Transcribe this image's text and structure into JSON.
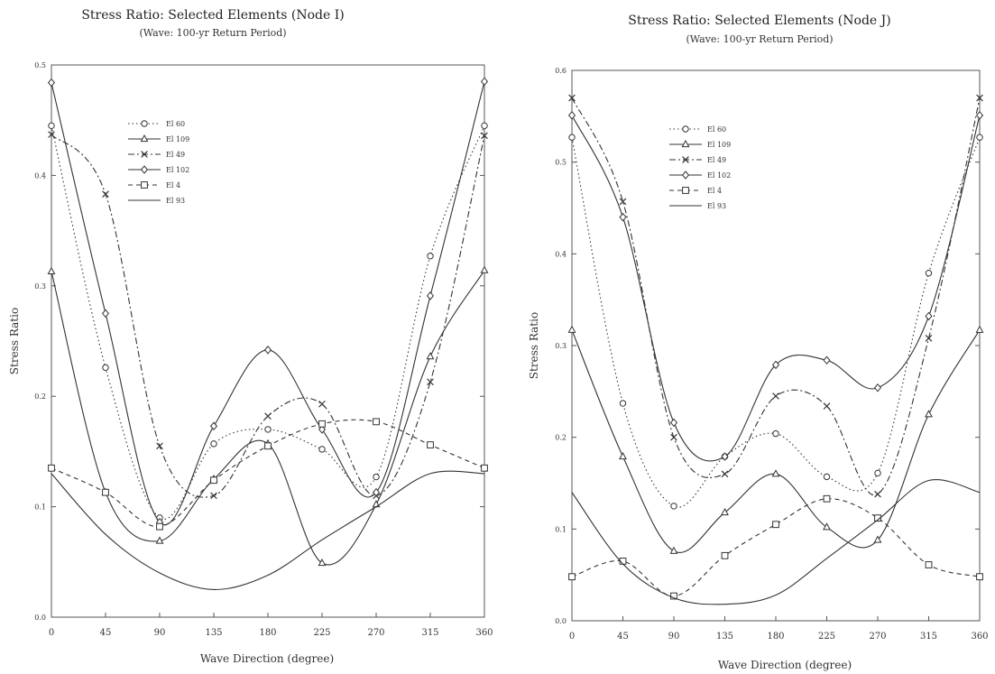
{
  "chart_data": [
    {
      "type": "line",
      "title": "Stress Ratio: Selected Elements (Node I)",
      "subtitle": "(Wave: 100-yr Return Period)",
      "xlabel": "Wave Direction (degree)",
      "ylabel": "Stress Ratio",
      "x_ticks": [
        "0",
        "45",
        "90",
        "135",
        "180",
        "225",
        "270",
        "315",
        "360"
      ],
      "y_ticks": [
        "0.0",
        "0.1",
        "0.2",
        "0.3",
        "0.4",
        "0.5"
      ],
      "xlim": [
        0,
        360
      ],
      "ylim": [
        0,
        0.5
      ],
      "legend_position": "top-left",
      "series": [
        {
          "name": "El 60",
          "x": [
            0,
            45,
            90,
            135,
            180,
            225,
            270,
            315,
            360
          ],
          "y": [
            0.445,
            0.226,
            0.09,
            0.157,
            0.17,
            0.152,
            0.127,
            0.327,
            0.445
          ]
        },
        {
          "name": "El 109",
          "x": [
            0,
            45,
            90,
            135,
            180,
            225,
            270,
            315,
            360
          ],
          "y": [
            0.313,
            0.113,
            0.069,
            0.125,
            0.157,
            0.049,
            0.102,
            0.236,
            0.314
          ]
        },
        {
          "name": "El 49",
          "x": [
            0,
            45,
            90,
            135,
            180,
            225,
            270,
            315,
            360
          ],
          "y": [
            0.437,
            0.383,
            0.155,
            0.11,
            0.182,
            0.193,
            0.11,
            0.213,
            0.436
          ]
        },
        {
          "name": "El 102",
          "x": [
            0,
            45,
            90,
            135,
            180,
            225,
            270,
            315,
            360
          ],
          "y": [
            0.484,
            0.275,
            0.086,
            0.173,
            0.242,
            0.17,
            0.113,
            0.291,
            0.485
          ]
        },
        {
          "name": "El 4",
          "x": [
            0,
            45,
            90,
            135,
            180,
            225,
            270,
            315,
            360
          ],
          "y": [
            0.135,
            0.113,
            0.082,
            0.124,
            0.155,
            0.175,
            0.177,
            0.156,
            0.135
          ]
        },
        {
          "name": "El 93",
          "x": [
            0,
            45,
            90,
            135,
            180,
            225,
            270,
            315,
            360
          ],
          "y": [
            0.13,
            0.075,
            0.04,
            0.025,
            0.038,
            0.07,
            0.1,
            0.13,
            0.13
          ]
        }
      ]
    },
    {
      "type": "line",
      "title": "Stress Ratio: Selected Elements (Node J)",
      "subtitle": "(Wave: 100-yr Return Period)",
      "xlabel": "Wave Direction (degree)",
      "ylabel": "Stress Ratio",
      "x_ticks": [
        "0",
        "45",
        "90",
        "135",
        "180",
        "225",
        "270",
        "315",
        "360"
      ],
      "y_ticks": [
        "0.0",
        "0.1",
        "0.2",
        "0.3",
        "0.4",
        "0.5",
        "0.6"
      ],
      "xlim": [
        0,
        360
      ],
      "ylim": [
        0,
        0.6
      ],
      "legend_position": "top-left",
      "series": [
        {
          "name": "El 60",
          "x": [
            0,
            45,
            90,
            135,
            180,
            225,
            270,
            315,
            360
          ],
          "y": [
            0.527,
            0.237,
            0.125,
            0.179,
            0.204,
            0.157,
            0.161,
            0.379,
            0.527
          ]
        },
        {
          "name": "El 109",
          "x": [
            0,
            45,
            90,
            135,
            180,
            225,
            270,
            315,
            360
          ],
          "y": [
            0.317,
            0.179,
            0.076,
            0.118,
            0.16,
            0.102,
            0.088,
            0.225,
            0.317
          ]
        },
        {
          "name": "El 49",
          "x": [
            0,
            45,
            90,
            135,
            180,
            225,
            270,
            315,
            360
          ],
          "y": [
            0.57,
            0.457,
            0.2,
            0.16,
            0.245,
            0.234,
            0.138,
            0.308,
            0.57
          ]
        },
        {
          "name": "El 102",
          "x": [
            0,
            45,
            90,
            135,
            180,
            225,
            270,
            315,
            360
          ],
          "y": [
            0.551,
            0.44,
            0.216,
            0.179,
            0.279,
            0.284,
            0.254,
            0.332,
            0.551
          ]
        },
        {
          "name": "El 4",
          "x": [
            0,
            45,
            90,
            135,
            180,
            225,
            270,
            315,
            360
          ],
          "y": [
            0.048,
            0.065,
            0.027,
            0.071,
            0.105,
            0.133,
            0.112,
            0.061,
            0.048
          ]
        },
        {
          "name": "El 93",
          "x": [
            0,
            45,
            90,
            135,
            180,
            225,
            270,
            315,
            360
          ],
          "y": [
            0.14,
            0.062,
            0.025,
            0.018,
            0.028,
            0.068,
            0.11,
            0.153,
            0.14
          ]
        }
      ]
    }
  ]
}
